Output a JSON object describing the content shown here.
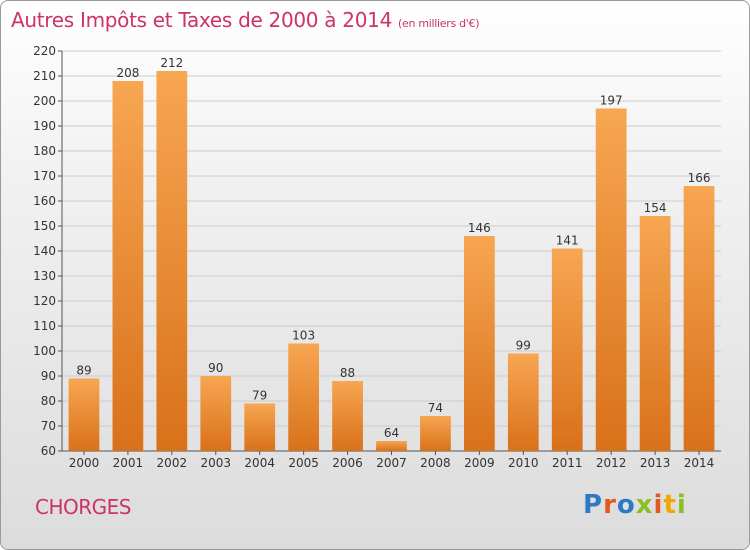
{
  "title": "Autres Impôts et Taxes de 2000 à 2014",
  "subtitle": "(en milliers d'€)",
  "city": "CHORGES",
  "logo": {
    "letters": [
      "P",
      "r",
      "o",
      "x",
      "i",
      "t",
      "i"
    ],
    "colors": [
      "#2b7bc4",
      "#e2581e",
      "#2b7bc4",
      "#8cbf26",
      "#e2581e",
      "#f0a800",
      "#8cbf26"
    ]
  },
  "colors": {
    "bar_light": "#f7a652",
    "bar_dark": "#d9711a",
    "grid": "#cccccc",
    "axis": "#555555",
    "title": "#cc3366"
  },
  "chart_data": {
    "type": "bar",
    "categories": [
      "2000",
      "2001",
      "2002",
      "2003",
      "2004",
      "2005",
      "2006",
      "2007",
      "2008",
      "2009",
      "2010",
      "2011",
      "2012",
      "2013",
      "2014"
    ],
    "values": [
      89,
      208,
      212,
      90,
      79,
      103,
      88,
      64,
      74,
      146,
      99,
      141,
      197,
      154,
      166
    ],
    "title": "Autres Impôts et Taxes de 2000 à 2014",
    "subtitle": "(en milliers d'€)",
    "xlabel": "",
    "ylabel": "",
    "ylim": [
      60,
      220
    ],
    "yticks": [
      60,
      70,
      80,
      90,
      100,
      110,
      120,
      130,
      140,
      150,
      160,
      170,
      180,
      190,
      200,
      210,
      220
    ],
    "grid": true
  }
}
